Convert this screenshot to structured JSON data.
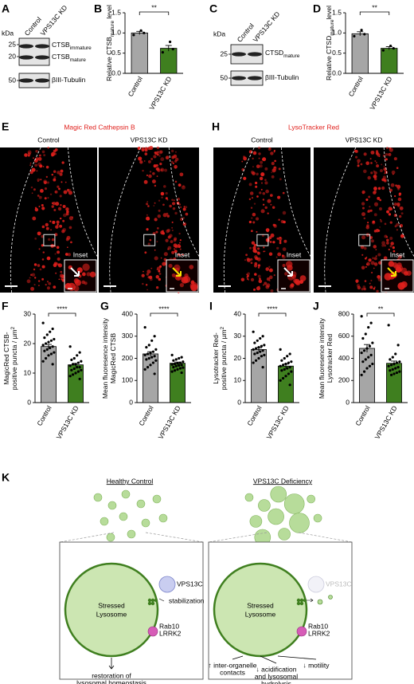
{
  "panel_labels": [
    "A",
    "B",
    "C",
    "D",
    "E",
    "F",
    "G",
    "H",
    "I",
    "J",
    "K"
  ],
  "blot_A": {
    "kda": "kDa",
    "lanes": [
      "Control",
      "VPS13C KD"
    ],
    "markers": [
      "25",
      "20",
      "50"
    ],
    "bands": [
      {
        "name": "CTSB",
        "sub": "immature"
      },
      {
        "name": "CTSB",
        "sub": "mature"
      },
      {
        "name": "βIII-Tubulin"
      }
    ]
  },
  "blot_C": {
    "kda": "kDa",
    "lanes": [
      "Control",
      "VPS13C KD"
    ],
    "markers": [
      "25",
      "50"
    ],
    "bands": [
      {
        "name": "CTSD",
        "sub": "mature"
      },
      {
        "name": "βIII-Tubulin"
      }
    ]
  },
  "chart_data": [
    {
      "type": "bar",
      "ylabel": [
        [
          {
            "text": "Relative CTSB"
          },
          {
            "sub": "mature"
          },
          {
            "text": " level"
          }
        ]
      ],
      "categories": [
        "Control",
        "VPS13C KD"
      ],
      "colors": [
        "#a6a6a6",
        "#3f7f1f"
      ],
      "values": [
        1.0,
        0.62
      ],
      "errors": [
        0.04,
        0.07
      ],
      "points": [
        [
          0.95,
          1.0,
          1.06
        ],
        [
          0.52,
          0.6,
          0.78
        ]
      ],
      "ylim": [
        0,
        1.5
      ],
      "yticks": [
        {
          "value": 0,
          "label": "0.0"
        },
        0.5,
        {
          "value": 1,
          "label": "1.0"
        },
        1.5
      ],
      "significance": "**"
    },
    {
      "type": "bar",
      "ylabel": [
        [
          {
            "text": "Relative CTSD"
          },
          {
            "sub": "mature"
          },
          {
            "text": "level"
          }
        ]
      ],
      "categories": [
        "Control",
        "VPS13C KD"
      ],
      "colors": [
        "#a6a6a6",
        "#3f7f1f"
      ],
      "values": [
        0.98,
        0.62
      ],
      "errors": [
        0.05,
        0.04
      ],
      "points": [
        [
          0.92,
          0.97,
          1.07
        ],
        [
          0.57,
          0.62,
          0.68
        ]
      ],
      "ylim": [
        0,
        1.5
      ],
      "yticks": [
        {
          "value": 0,
          "label": "0.0"
        },
        0.5,
        {
          "value": 1,
          "label": "1.0"
        },
        1.5
      ],
      "significance": "**"
    },
    {
      "type": "bar",
      "ylabel": [
        [
          {
            "text": "MagicRed CTSB-"
          }
        ],
        [
          {
            "text": "positive puncta / µm"
          },
          {
            "sup": "2"
          }
        ]
      ],
      "categories": [
        "Control",
        "VPS13C KD"
      ],
      "colors": [
        "#a6a6a6",
        "#3f7f1f"
      ],
      "values": [
        19,
        12.8
      ],
      "errors": [
        0.7,
        0.5
      ],
      "points": [
        [
          27,
          25,
          24,
          23,
          22,
          21.5,
          21,
          20.5,
          20,
          19.5,
          19,
          18.5,
          18,
          17.5,
          17,
          16.5,
          16,
          15,
          14,
          13
        ],
        [
          19,
          17,
          16,
          15,
          14.5,
          14,
          13.5,
          13,
          13,
          12.5,
          12,
          12,
          11.5,
          11,
          11,
          10.5,
          10,
          9.5,
          9,
          8
        ]
      ],
      "ylim": [
        0,
        30
      ],
      "yticks": [
        0,
        10,
        20,
        30
      ],
      "significance": "****"
    },
    {
      "type": "bar",
      "ylabel": [
        [
          {
            "text": "Mean fluoresence intensity"
          }
        ],
        [
          {
            "text": "MagicRed CTSB"
          }
        ]
      ],
      "categories": [
        "Control",
        "VPS13C KD"
      ],
      "colors": [
        "#a6a6a6",
        "#3f7f1f"
      ],
      "values": [
        220,
        178
      ],
      "errors": [
        10,
        5
      ],
      "points": [
        [
          340,
          300,
          280,
          260,
          250,
          240,
          230,
          225,
          220,
          215,
          210,
          205,
          200,
          195,
          190,
          180,
          170,
          160,
          150,
          130
        ],
        [
          215,
          205,
          200,
          195,
          190,
          185,
          180,
          178,
          175,
          172,
          170,
          168,
          165,
          160,
          158,
          155,
          150,
          145,
          140,
          135
        ]
      ],
      "ylim": [
        0,
        400
      ],
      "yticks": [
        0,
        100,
        200,
        300,
        400
      ],
      "significance": "****"
    },
    {
      "type": "bar",
      "ylabel": [
        [
          {
            "text": "Lysotracker Red-"
          }
        ],
        [
          {
            "text": "positive puncta / µm"
          },
          {
            "sup": "2"
          }
        ]
      ],
      "categories": [
        "Control",
        "VPS13C KD"
      ],
      "colors": [
        "#a6a6a6",
        "#3f7f1f"
      ],
      "values": [
        24,
        16.5
      ],
      "errors": [
        0.8,
        0.9
      ],
      "points": [
        [
          32,
          30,
          29,
          28,
          27,
          26,
          25.5,
          25,
          24.5,
          24,
          23.5,
          23,
          22.5,
          22,
          21.5,
          21,
          20,
          19,
          18,
          16
        ],
        [
          24,
          22,
          21,
          20,
          19,
          18.5,
          18,
          17.5,
          17,
          16.5,
          16,
          15.5,
          15,
          14.5,
          14,
          13,
          12,
          11,
          10,
          8
        ]
      ],
      "ylim": [
        0,
        40
      ],
      "yticks": [
        0,
        10,
        20,
        30,
        40
      ],
      "significance": "****"
    },
    {
      "type": "bar",
      "ylabel": [
        [
          {
            "text": "Mean fluoresence intensity"
          }
        ],
        [
          {
            "text": "Lysotracker Red"
          }
        ]
      ],
      "categories": [
        "Control",
        "VPS13C KD"
      ],
      "colors": [
        "#a6a6a6",
        "#3f7f1f"
      ],
      "values": [
        490,
        355
      ],
      "errors": [
        35,
        20
      ],
      "points": [
        [
          780,
          720,
          680,
          620,
          580,
          540,
          510,
          490,
          470,
          450,
          430,
          410,
          390,
          370,
          350,
          330,
          310,
          280,
          250
        ],
        [
          700,
          520,
          440,
          410,
          390,
          370,
          360,
          350,
          340,
          330,
          320,
          310,
          300,
          290,
          280,
          270,
          260,
          250
        ]
      ],
      "ylim": [
        0,
        800
      ],
      "yticks": [
        0,
        200,
        400,
        600,
        800
      ],
      "significance": "**"
    }
  ],
  "imaging": [
    {
      "title": "Magic Red Cathepsin B",
      "columns": [
        "Control",
        "VPS13C KD"
      ],
      "inset": "Inset"
    },
    {
      "title": "LysoTracker Red",
      "columns": [
        "Control",
        "VPS13C KD"
      ],
      "inset": "Inset"
    }
  ],
  "diagram": {
    "left": {
      "title": "Healthy Control",
      "organelle": [
        "Stressed",
        "Lysosome"
      ],
      "protein": "VPS13C",
      "note": "stabilization",
      "rab": "Rab10",
      "lrrk": "LRRK2",
      "outcome": [
        "restoration of",
        "lysosomal homeostasis"
      ]
    },
    "right": {
      "title": "VPS13C Deficiency",
      "organelle": [
        "Stressed",
        "Lysosome"
      ],
      "protein": "VPS13C",
      "rab": "Rab10",
      "lrrk": "LRRK2",
      "outcomes": [
        [
          "↑ inter-organelle",
          "contacts"
        ],
        [
          "↓ acidification",
          "and lysosomal",
          "hydrolysis"
        ],
        [
          "↓ motility"
        ]
      ]
    }
  }
}
